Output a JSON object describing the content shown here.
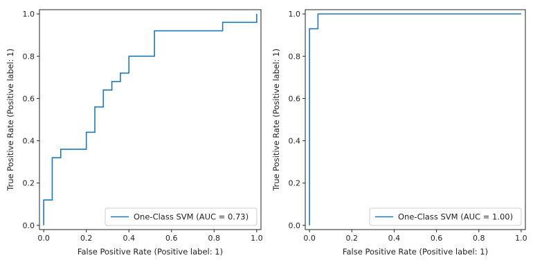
{
  "chart_data": [
    {
      "type": "line",
      "title": "",
      "xlabel": "False Positive Rate (Positive label: 1)",
      "ylabel": "True Positive Rate (Positive label: 1)",
      "xlim": [
        0,
        1
      ],
      "ylim": [
        0,
        1
      ],
      "xticks": [
        "0.0",
        "0.2",
        "0.4",
        "0.6",
        "0.8",
        "1.0"
      ],
      "yticks": [
        "0.0",
        "0.2",
        "0.4",
        "0.6",
        "0.8",
        "1.0"
      ],
      "grid": false,
      "legend_position": "lower-right",
      "series": [
        {
          "name": "One-Class SVM (AUC = 0.73)",
          "color": "#1f77b4",
          "x": [
            0,
            0,
            0.04,
            0.04,
            0.08,
            0.08,
            0.2,
            0.2,
            0.24,
            0.24,
            0.28,
            0.28,
            0.32,
            0.32,
            0.36,
            0.36,
            0.4,
            0.4,
            0.52,
            0.52,
            0.84,
            0.84,
            1.0,
            1.0
          ],
          "y": [
            0,
            0.12,
            0.12,
            0.32,
            0.32,
            0.36,
            0.36,
            0.44,
            0.44,
            0.56,
            0.56,
            0.64,
            0.64,
            0.68,
            0.68,
            0.72,
            0.72,
            0.8,
            0.8,
            0.92,
            0.92,
            0.96,
            0.96,
            1.0
          ]
        }
      ]
    },
    {
      "type": "line",
      "title": "",
      "xlabel": "False Positive Rate (Positive label: 1)",
      "ylabel": "True Positive Rate (Positive label: 1)",
      "xlim": [
        0,
        1
      ],
      "ylim": [
        0,
        1
      ],
      "xticks": [
        "0.0",
        "0.2",
        "0.4",
        "0.6",
        "0.8",
        "1.0"
      ],
      "yticks": [
        "0.0",
        "0.2",
        "0.4",
        "0.6",
        "0.8",
        "1.0"
      ],
      "grid": false,
      "legend_position": "lower-right",
      "series": [
        {
          "name": "One-Class SVM (AUC = 1.00)",
          "color": "#1f77b4",
          "x": [
            0,
            0,
            0.04,
            0.04,
            1.0
          ],
          "y": [
            0,
            0.93,
            0.93,
            1.0,
            1.0
          ]
        }
      ]
    }
  ]
}
